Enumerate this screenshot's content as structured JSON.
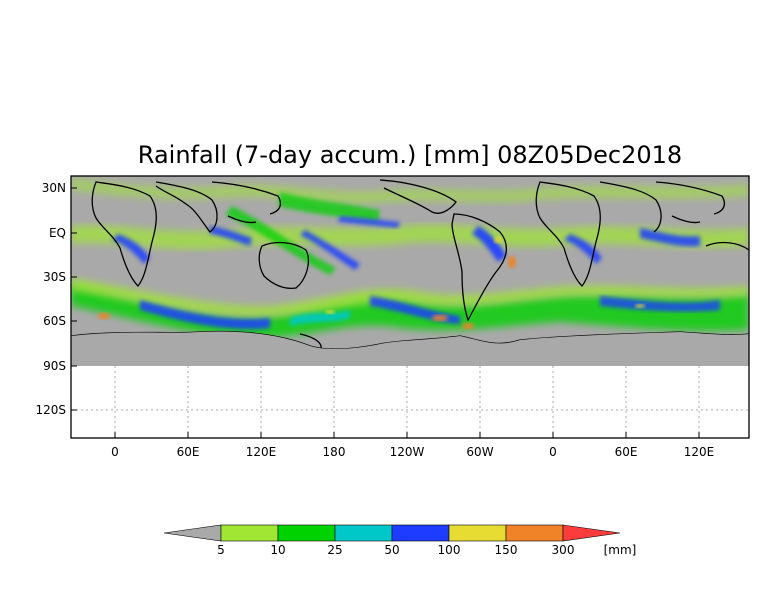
{
  "title": "Rainfall (7-day accum.) [mm] 08Z05Dec2018",
  "map": {
    "y_ticks": [
      "30N",
      "EQ",
      "30S",
      "60S",
      "90S",
      "120S"
    ],
    "x_ticks": [
      "0",
      "60E",
      "120E",
      "180",
      "120W",
      "60W",
      "0",
      "60E",
      "120E"
    ],
    "background_color": "#a9a9a9",
    "land_outline_color": "#000000"
  },
  "colorbar": {
    "labels": [
      "5",
      "10",
      "25",
      "50",
      "100",
      "150",
      "300"
    ],
    "unit": "[mm]",
    "colors": [
      "#a9a9a9",
      "#a0e632",
      "#00d200",
      "#00c8c8",
      "#1e3cff",
      "#e6dc32",
      "#f08228",
      "#fa3c3c"
    ]
  }
}
